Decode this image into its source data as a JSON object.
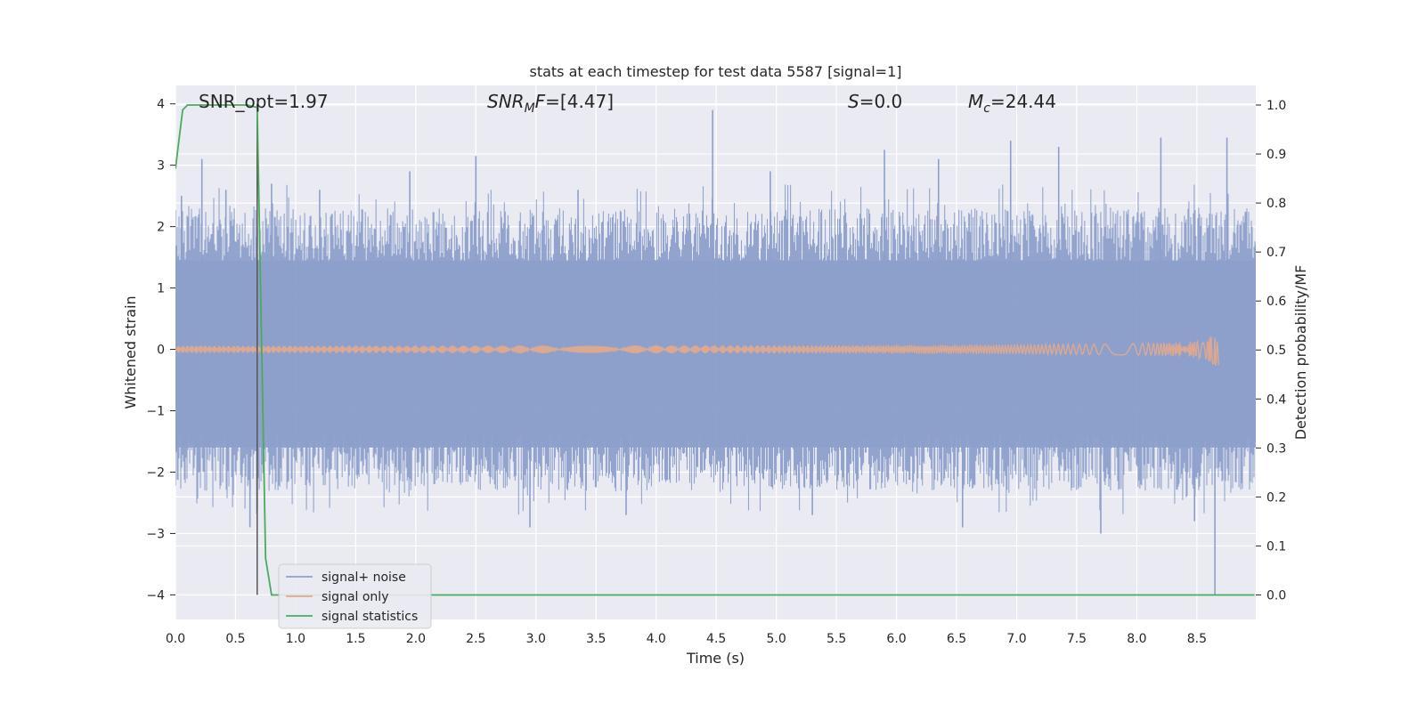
{
  "chart_data": {
    "type": "line",
    "title": "stats at each timestep for test data 5587 [signal=1]",
    "xlabel": "Time (s)",
    "ylabel": "Whitened strain",
    "ylabel_right": "Detection probability/MF",
    "xlim": [
      0.0,
      8.99
    ],
    "ylim": [
      -4.4,
      4.3
    ],
    "ylim_right": [
      -0.05,
      1.04
    ],
    "xticks": [
      "0.0",
      "0.5",
      "1.0",
      "1.5",
      "2.0",
      "2.5",
      "3.0",
      "3.5",
      "4.0",
      "4.5",
      "5.0",
      "5.5",
      "6.0",
      "6.5",
      "7.0",
      "7.5",
      "8.0",
      "8.5"
    ],
    "yticks": [
      "−4",
      "−3",
      "−2",
      "−1",
      "0",
      "1",
      "2",
      "3",
      "4"
    ],
    "yticks_right": [
      "0.0",
      "0.1",
      "0.2",
      "0.3",
      "0.4",
      "0.5",
      "0.6",
      "0.7",
      "0.8",
      "0.9",
      "1.0"
    ],
    "grid": true,
    "legend_position": "lower-left",
    "annotations": {
      "snr_opt": "SNR_opt=1.97",
      "snr_mf_prefix": "SNR",
      "snr_mf_sub": "M",
      "snr_mf_suffix": "F=[4.47]",
      "s_prefix": "S",
      "s_suffix": "=0.0",
      "mc_prefix": "M",
      "mc_sub": "c",
      "mc_suffix": "=24.44"
    },
    "series": [
      {
        "name": "signal+ noise",
        "color": "#8da0cb",
        "axis": "left",
        "description_values": "noisy whitened strain, roughly within [-2.5, 2.5] with spikes",
        "spikes": [
          {
            "x": 0.05,
            "y": 2.5
          },
          {
            "x": 0.22,
            "y": 3.1
          },
          {
            "x": 0.42,
            "y": 2.6
          },
          {
            "x": 0.62,
            "y": -2.9
          },
          {
            "x": 0.8,
            "y": 2.7
          },
          {
            "x": 1.2,
            "y": 2.6
          },
          {
            "x": 1.95,
            "y": 2.9
          },
          {
            "x": 2.5,
            "y": 3.15
          },
          {
            "x": 2.95,
            "y": -2.9
          },
          {
            "x": 3.35,
            "y": 2.6
          },
          {
            "x": 3.75,
            "y": -2.7
          },
          {
            "x": 4.47,
            "y": 3.9
          },
          {
            "x": 4.95,
            "y": 2.9
          },
          {
            "x": 5.3,
            "y": -2.7
          },
          {
            "x": 5.9,
            "y": 3.25
          },
          {
            "x": 6.35,
            "y": 3.1
          },
          {
            "x": 6.55,
            "y": -2.9
          },
          {
            "x": 6.95,
            "y": 3.4
          },
          {
            "x": 7.35,
            "y": 3.3
          },
          {
            "x": 7.7,
            "y": -3.0
          },
          {
            "x": 8.2,
            "y": 3.45
          },
          {
            "x": 8.48,
            "y": -2.8
          },
          {
            "x": 8.65,
            "y": -4.0
          },
          {
            "x": 8.75,
            "y": 3.45
          }
        ]
      },
      {
        "name": "signal only",
        "color": "#e5a889",
        "axis": "left",
        "description_values": "chirp signal, amplitude ~0 rising to ~0.4 near t=8.65"
      },
      {
        "name": "signal statistics",
        "color": "#4caa5d",
        "axis": "right",
        "x": [
          0.0,
          0.06,
          0.1,
          0.2,
          0.3,
          0.4,
          0.5,
          0.6,
          0.68,
          0.75,
          0.8,
          8.98
        ],
        "values": [
          0.87,
          0.99,
          1.0,
          1.0,
          1.0,
          1.0,
          1.0,
          1.0,
          0.995,
          0.075,
          0.0,
          0.0
        ]
      }
    ],
    "vline_x": 0.68,
    "colors": {
      "background": "#eaeaf2",
      "grid": "#ffffff",
      "noise": "#8da0cb",
      "signal": "#e5a889",
      "stats": "#4caa5d",
      "vline": "#555555"
    }
  }
}
